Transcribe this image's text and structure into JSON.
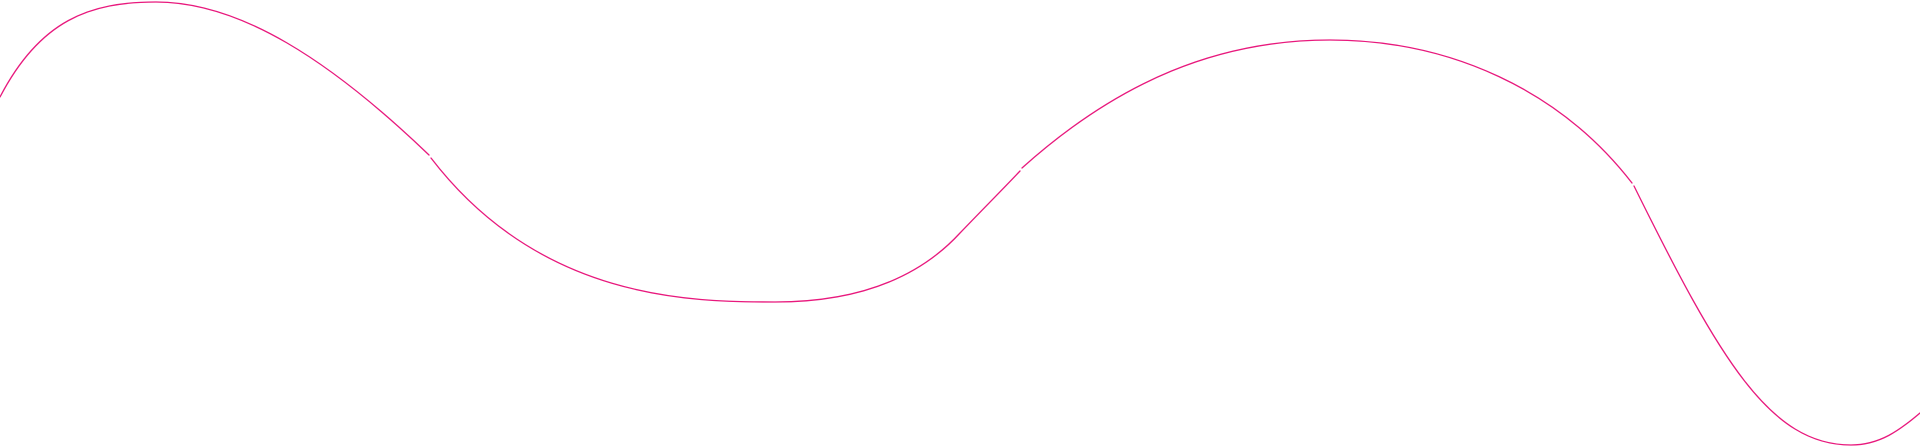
{
  "decoration": {
    "type": "wave-line",
    "stroke_color": "#e8197d",
    "background_color": "#ffffff",
    "segment_count": 4
  }
}
